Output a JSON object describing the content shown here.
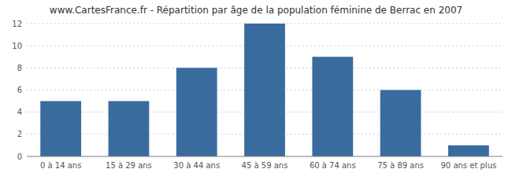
{
  "chart_data": {
    "type": "bar",
    "title": "www.CartesFrance.fr - Répartition par âge de la population féminine de Berrac en 2007",
    "categories": [
      "0 à 14 ans",
      "15 à 29 ans",
      "30 à 44 ans",
      "45 à 59 ans",
      "60 à 74 ans",
      "75 à 89 ans",
      "90 ans et plus"
    ],
    "values": [
      5,
      5,
      8,
      12,
      9,
      6,
      1
    ],
    "color": "#3A6B9E",
    "ylim": [
      0,
      12
    ],
    "yticks": [
      0,
      2,
      4,
      6,
      8,
      10,
      12
    ],
    "grid": true
  }
}
